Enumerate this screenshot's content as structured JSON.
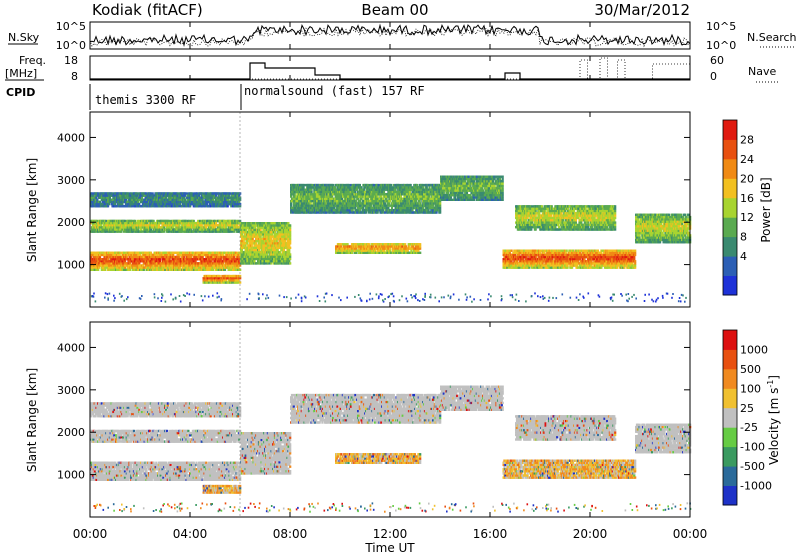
{
  "header": {
    "station": "Kodiak (fitACF)",
    "beam": "Beam 00",
    "date": "30/Mar/2012"
  },
  "nsky_panel": {
    "left_label": "N.Sky",
    "right_label": "N.Search",
    "left_ticks": [
      "10^5",
      "10^0"
    ],
    "right_ticks": [
      "10^5",
      "10^0"
    ]
  },
  "freq_panel": {
    "left_label_1": "Freq.",
    "left_label_2": "[MHz]",
    "left_ticks": [
      "18",
      "8"
    ],
    "right_label": "Nave",
    "right_ticks": [
      "60",
      "0"
    ]
  },
  "cpid_panel": {
    "label": "CPID",
    "segments": [
      {
        "name": "themis 3300 RF",
        "start_hour": 0,
        "end_hour": 6
      },
      {
        "name": "normalsound (fast) 157 RF",
        "start_hour": 6,
        "end_hour": 24
      }
    ]
  },
  "power_panel": {
    "ylabel": "Slant Range [km]",
    "yticks": [
      "1000",
      "2000",
      "3000",
      "4000"
    ],
    "colorbar_label": "Power [dB]",
    "colorbar_ticks": [
      "28",
      "24",
      "20",
      "16",
      "12",
      "8",
      "4"
    ],
    "colors": [
      "#1e32d8",
      "#2c5fb5",
      "#3a8a70",
      "#5aaa50",
      "#a8d430",
      "#f2c020",
      "#f08a14",
      "#e85010",
      "#e01a10"
    ]
  },
  "velocity_panel": {
    "ylabel": "Slant Range [km]",
    "yticks": [
      "1000",
      "2000",
      "3000",
      "4000"
    ],
    "colorbar_label": "Velocity [m s^-1]",
    "colorbar_ticks": [
      "1000",
      "500",
      "100",
      "25",
      "-25",
      "-100",
      "-500",
      "-1000"
    ],
    "colors": [
      "#1e32c8",
      "#2a6a9a",
      "#3a9a60",
      "#66cc44",
      "#c0c0c0",
      "#f0c030",
      "#f08a20",
      "#e85010",
      "#dd1010"
    ]
  },
  "xaxis": {
    "title": "Time UT",
    "ticks": [
      "00:00",
      "04:00",
      "08:00",
      "12:00",
      "16:00",
      "20:00",
      "00:00"
    ]
  },
  "chart_data": {
    "type": "heatmap",
    "x_range_hours": [
      0,
      24
    ],
    "y_range_km": [
      0,
      4600
    ],
    "power_bands": [
      {
        "t0": 0.0,
        "t1": 6.0,
        "r0": 850,
        "r1": 1300,
        "db": 26
      },
      {
        "t0": 0.0,
        "t1": 6.0,
        "r0": 1750,
        "r1": 2050,
        "db": 16
      },
      {
        "t0": 0.0,
        "t1": 6.0,
        "r0": 2350,
        "r1": 2700,
        "db": 8
      },
      {
        "t0": 4.5,
        "t1": 6.0,
        "r0": 550,
        "r1": 750,
        "db": 24
      },
      {
        "t0": 6.0,
        "t1": 8.0,
        "r0": 1000,
        "r1": 2000,
        "db": 18
      },
      {
        "t0": 8.0,
        "t1": 14.0,
        "r0": 2200,
        "r1": 2900,
        "db": 12
      },
      {
        "t0": 9.8,
        "t1": 13.2,
        "r0": 1250,
        "r1": 1500,
        "db": 22
      },
      {
        "t0": 14.0,
        "t1": 16.5,
        "r0": 2500,
        "r1": 3100,
        "db": 12
      },
      {
        "t0": 16.5,
        "t1": 21.8,
        "r0": 900,
        "r1": 1350,
        "db": 26
      },
      {
        "t0": 17.0,
        "t1": 21.0,
        "r0": 1800,
        "r1": 2400,
        "db": 16
      },
      {
        "t0": 21.8,
        "t1": 24.0,
        "r0": 1500,
        "r1": 2200,
        "db": 16
      }
    ],
    "cpid_change_hour": 6.0
  }
}
